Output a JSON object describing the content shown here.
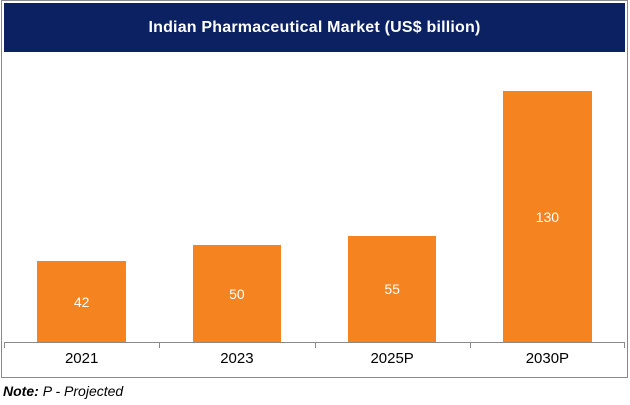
{
  "title": "Indian Pharmaceutical Market (US$ billion)",
  "note": {
    "label": "Note:",
    "text": "P - Projected"
  },
  "colors": {
    "title_bg": "#0B2161",
    "title_text": "#FFFFFF",
    "bar": "#F5831F",
    "bar_label_text": "#FFFFFF",
    "axis_line": "#898989",
    "frame_border": "#898989",
    "category_text": "#000000"
  },
  "chart_data": {
    "type": "bar",
    "title": "Indian Pharmaceutical Market (US$ billion)",
    "categories": [
      "2021",
      "2023",
      "2025P",
      "2030P"
    ],
    "values": [
      42,
      50,
      55,
      130
    ],
    "xlabel": "",
    "ylabel": "",
    "ylim": [
      0,
      150
    ],
    "grid": false,
    "legend": "none",
    "data_labels": "inside-center",
    "bar_color": "#F5831F"
  }
}
